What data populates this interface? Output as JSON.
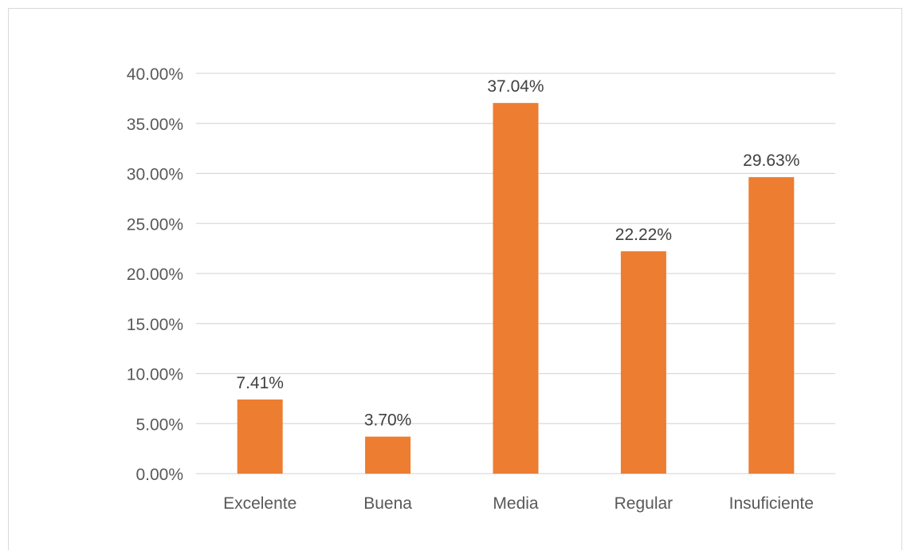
{
  "chart_data": {
    "type": "bar",
    "categories": [
      "Excelente",
      "Buena",
      "Media",
      "Regular",
      "Insuficiente"
    ],
    "values": [
      7.41,
      3.7,
      37.04,
      22.22,
      29.63
    ],
    "data_labels": [
      "7.41%",
      "3.70%",
      "37.04%",
      "22.22%",
      "29.63%"
    ],
    "yticks": [
      0,
      5,
      10,
      15,
      20,
      25,
      30,
      35,
      40
    ],
    "ytick_labels": [
      "0.00%",
      "5.00%",
      "10.00%",
      "15.00%",
      "20.00%",
      "25.00%",
      "30.00%",
      "35.00%",
      "40.00%"
    ],
    "ylim": [
      0,
      40
    ],
    "grid": true,
    "legend": "none",
    "bar_color": "#ED7D31",
    "grid_color": "#D9D9D9",
    "title": "",
    "xlabel": "",
    "ylabel": ""
  }
}
